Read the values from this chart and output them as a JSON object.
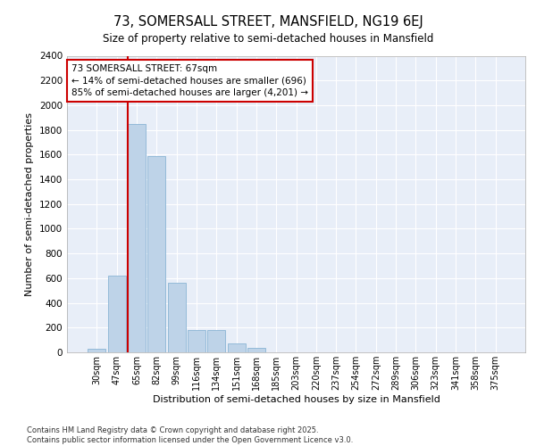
{
  "title_line1": "73, SOMERSALL STREET, MANSFIELD, NG19 6EJ",
  "title_line2": "Size of property relative to semi-detached houses in Mansfield",
  "xlabel": "Distribution of semi-detached houses by size in Mansfield",
  "ylabel": "Number of semi-detached properties",
  "categories": [
    "30sqm",
    "47sqm",
    "65sqm",
    "82sqm",
    "99sqm",
    "116sqm",
    "134sqm",
    "151sqm",
    "168sqm",
    "185sqm",
    "203sqm",
    "220sqm",
    "237sqm",
    "254sqm",
    "272sqm",
    "289sqm",
    "306sqm",
    "323sqm",
    "341sqm",
    "358sqm",
    "375sqm"
  ],
  "values": [
    30,
    620,
    1850,
    1590,
    560,
    180,
    180,
    70,
    35,
    0,
    0,
    0,
    0,
    0,
    0,
    0,
    0,
    0,
    0,
    0,
    0
  ],
  "bar_color": "#bed3e8",
  "bar_edge_color": "#8ab4d4",
  "vline_color": "#cc0000",
  "annotation_text": "73 SOMERSALL STREET: 67sqm\n← 14% of semi-detached houses are smaller (696)\n85% of semi-detached houses are larger (4,201) →",
  "annotation_box_facecolor": "#ffffff",
  "annotation_box_edgecolor": "#cc0000",
  "ylim": [
    0,
    2400
  ],
  "yticks": [
    0,
    200,
    400,
    600,
    800,
    1000,
    1200,
    1400,
    1600,
    1800,
    2000,
    2200,
    2400
  ],
  "plot_bg_color": "#e8eef8",
  "grid_color": "#ffffff",
  "footer_line1": "Contains HM Land Registry data © Crown copyright and database right 2025.",
  "footer_line2": "Contains public sector information licensed under the Open Government Licence v3.0."
}
